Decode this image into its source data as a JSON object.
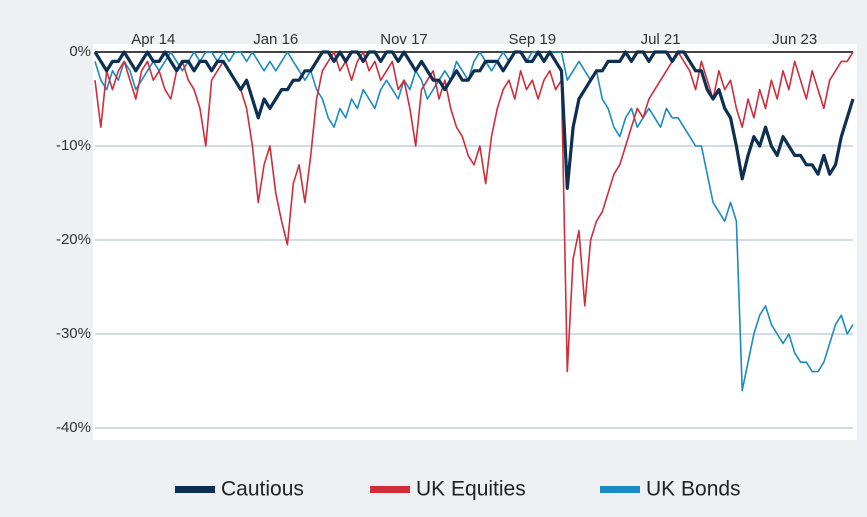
{
  "chart_data": {
    "type": "line",
    "categories": [
      null,
      null,
      null,
      null,
      null,
      null,
      null,
      null,
      null,
      null,
      "Apr 14",
      null,
      null,
      null,
      null,
      null,
      null,
      null,
      null,
      null,
      null,
      null,
      null,
      null,
      null,
      null,
      null,
      null,
      null,
      null,
      null,
      "Jan 16",
      null,
      null,
      null,
      null,
      null,
      null,
      null,
      null,
      null,
      null,
      null,
      null,
      null,
      null,
      null,
      null,
      null,
      null,
      null,
      null,
      null,
      "Nov 17",
      null,
      null,
      null,
      null,
      null,
      null,
      null,
      null,
      null,
      null,
      null,
      null,
      null,
      null,
      null,
      null,
      null,
      null,
      null,
      null,
      null,
      "Sep 19",
      null,
      null,
      null,
      null,
      null,
      null,
      null,
      null,
      null,
      null,
      null,
      null,
      null,
      null,
      null,
      null,
      null,
      null,
      null,
      null,
      null,
      "Jul 21",
      null,
      null,
      null,
      null,
      null,
      null,
      null,
      null,
      null,
      null,
      null,
      null,
      null,
      null,
      null,
      null,
      null,
      null,
      null,
      null,
      null,
      null,
      "Jun 23",
      null,
      null,
      null,
      null,
      null,
      null,
      null,
      null,
      null,
      null
    ],
    "series": [
      {
        "name": "Cautious",
        "color": "#0d2f52",
        "values": [
          0,
          -1,
          -2,
          -1,
          -1,
          0,
          -1,
          -2,
          -1,
          0,
          -1,
          -1,
          0,
          -1,
          -2,
          -1,
          -1,
          -2,
          -1,
          -1,
          -2,
          -1,
          -1,
          -2,
          -3,
          -4,
          -3,
          -5,
          -7,
          -5,
          -6,
          -5,
          -4,
          -4,
          -3,
          -3,
          -2,
          -2,
          -1,
          0,
          0,
          -1,
          0,
          -1,
          0,
          0,
          -1,
          0,
          0,
          -1,
          0,
          0,
          -1,
          0,
          -1,
          -2,
          -1,
          -2,
          -3,
          -3,
          -4,
          -3,
          -2,
          -3,
          -3,
          -2,
          -2,
          -1,
          -1,
          -1,
          -2,
          -1,
          0,
          0,
          -1,
          -1,
          0,
          -1,
          0,
          -1,
          -2,
          -14.5,
          -8,
          -5,
          -4,
          -3,
          -2,
          -2,
          -1,
          -1,
          -1,
          0,
          -1,
          0,
          0,
          -1,
          0,
          0,
          0,
          -1,
          0,
          0,
          -1,
          -2,
          -2,
          -4,
          -5,
          -4,
          -6,
          -7,
          -10,
          -13.5,
          -11,
          -9,
          -10,
          -8,
          -10,
          -11,
          -9,
          -10,
          -11,
          -11,
          -12,
          -12,
          -13,
          -11,
          -13,
          -12,
          -9,
          -7,
          -5
        ]
      },
      {
        "name": "UK Equities",
        "color": "#d12c3a",
        "values": [
          -3,
          -8,
          -2,
          -4,
          -2,
          -1,
          -3,
          -5,
          -2,
          -1,
          -3,
          -2,
          -4,
          -5,
          -2,
          -1,
          -3,
          -4,
          -6,
          -10,
          -3,
          -2,
          -1,
          -2,
          -3,
          -4,
          -6,
          -10,
          -16,
          -12,
          -10,
          -15,
          -18,
          -20.5,
          -14,
          -12,
          -16,
          -11,
          -5,
          -2,
          -1,
          0,
          -2,
          -1,
          -3,
          -1,
          0,
          -2,
          -1,
          -3,
          -2,
          -1,
          -4,
          -3,
          -6,
          -10,
          -4,
          -3,
          -2,
          -5,
          -3,
          -6,
          -8,
          -9,
          -11,
          -12,
          -10,
          -14,
          -9,
          -6,
          -4,
          -3,
          -5,
          -2,
          -4,
          -3,
          -5,
          -3,
          -2,
          -4,
          -3,
          -34,
          -22,
          -19,
          -27,
          -20,
          -18,
          -17,
          -15,
          -13,
          -12,
          -10,
          -8,
          -6,
          -7,
          -5,
          -4,
          -3,
          -2,
          -1,
          0,
          -1,
          -2,
          -4,
          -1,
          -3,
          -5,
          -2,
          -4,
          -3,
          -6,
          -8,
          -5,
          -7,
          -4,
          -6,
          -3,
          -5,
          -2,
          -4,
          -1,
          -3,
          -5,
          -2,
          -4,
          -6,
          -3,
          -2,
          -1,
          -1,
          0
        ]
      },
      {
        "name": "UK Bonds",
        "color": "#1b8bc4",
        "values": [
          -1,
          -3,
          -4,
          -2,
          -3,
          -1,
          -2,
          -4,
          -3,
          -2,
          -1,
          -2,
          -1,
          0,
          -1,
          -2,
          -1,
          0,
          -1,
          0,
          0,
          -1,
          0,
          -1,
          0,
          0,
          -1,
          0,
          -1,
          -2,
          -1,
          -2,
          -1,
          0,
          -1,
          -2,
          -3,
          -2,
          -4,
          -5,
          -7,
          -8,
          -6,
          -7,
          -5,
          -6,
          -4,
          -5,
          -6,
          -4,
          -3,
          -4,
          -5,
          -3,
          -4,
          -2,
          -3,
          -5,
          -4,
          -3,
          -2,
          -3,
          -1,
          -2,
          -3,
          -1,
          0,
          -1,
          -2,
          -1,
          0,
          -1,
          0,
          0,
          -1,
          0,
          0,
          -1,
          0,
          0,
          0,
          -3,
          -2,
          -1,
          -2,
          -3,
          -2,
          -5,
          -6,
          -8,
          -9,
          -7,
          -6,
          -8,
          -7,
          -6,
          -7,
          -8,
          -6,
          -7,
          -7,
          -8,
          -9,
          -10,
          -10,
          -13,
          -16,
          -17,
          -18,
          -16,
          -18,
          -36,
          -33,
          -30,
          -28,
          -27,
          -29,
          -30,
          -31,
          -30,
          -32,
          -33,
          -33,
          -34,
          -34,
          -33,
          -31,
          -29,
          -28,
          -30,
          -29
        ]
      }
    ],
    "ylim": [
      -40,
      0
    ],
    "yticks": [
      {
        "value": 0,
        "label": "0%"
      },
      {
        "value": -10,
        "label": "-10%"
      },
      {
        "value": -20,
        "label": "-20%"
      },
      {
        "value": -30,
        "label": "-30%"
      },
      {
        "value": -40,
        "label": "-40%"
      }
    ],
    "grid": true,
    "legend": "bottom"
  }
}
